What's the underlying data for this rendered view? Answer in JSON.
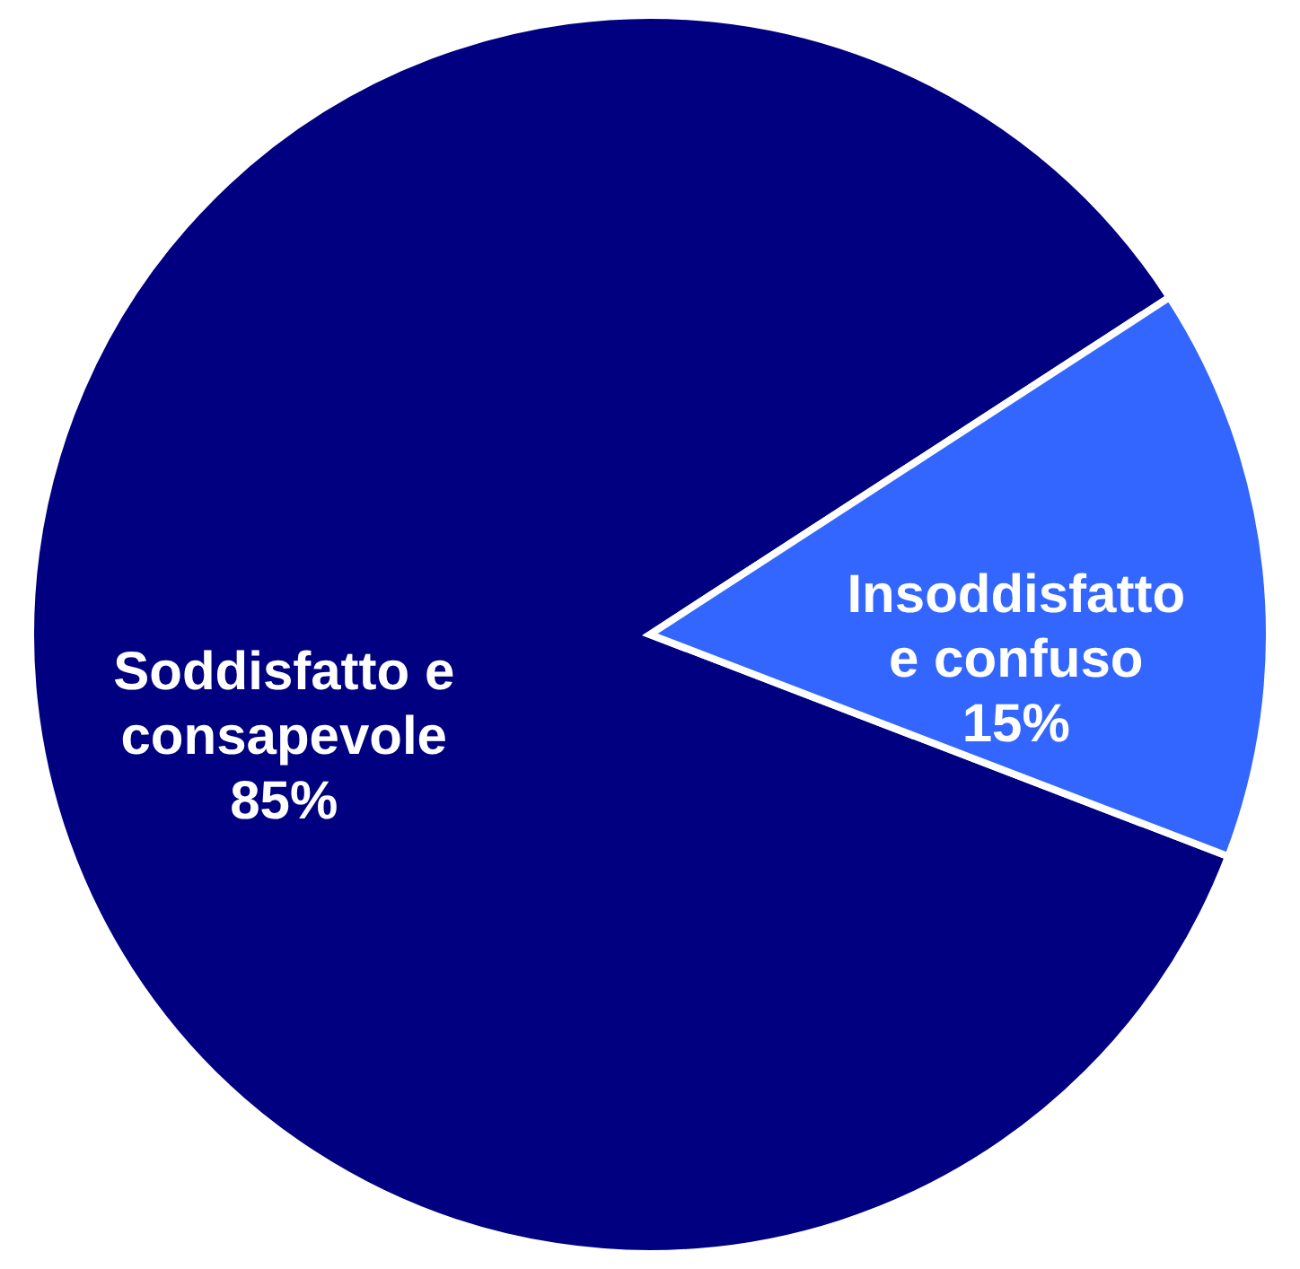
{
  "chart_data": {
    "type": "pie",
    "categories": [
      "Soddisfatto e consapevole",
      "Insoddisfatto e confuso"
    ],
    "values": [
      85,
      15
    ],
    "colors": [
      "#000080",
      "#3366ff"
    ],
    "value_labels": [
      "85%",
      "15%"
    ],
    "legend": false
  }
}
